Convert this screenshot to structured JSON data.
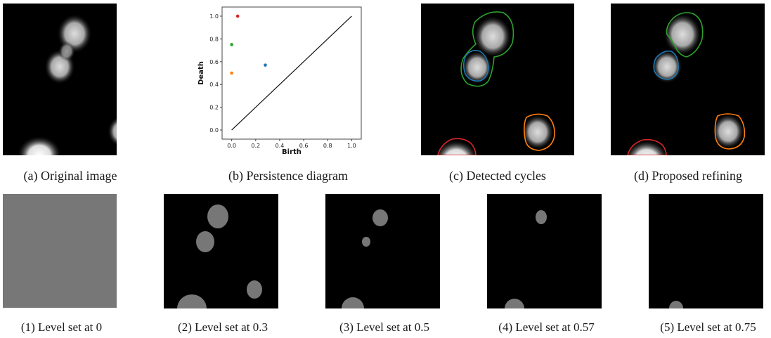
{
  "captions_top": [
    "(a) Original image",
    "(b) Persistence diagram",
    "(c) Detected cycles",
    "(d) Proposed refining"
  ],
  "captions_bottom": [
    "(1) Level set at 0",
    "(2) Level set at 0.3",
    "(3) Level set at 0.5",
    "(4) Level set at 0.57",
    "(5) Level set at 0.75"
  ],
  "colors": {
    "background": "#000000",
    "blob_fill": "#777777",
    "green": "#2ca02c",
    "orange": "#ff7f0e",
    "blue": "#1f77b4",
    "red": "#d62728"
  },
  "chart_data": {
    "type": "scatter",
    "title": "",
    "xlabel": "Birth",
    "ylabel": "Death",
    "xlim": [
      -0.08,
      1.08
    ],
    "ylim": [
      -0.08,
      1.08
    ],
    "xticks": [
      "0.0",
      "0.2",
      "0.4",
      "0.6",
      "0.8",
      "1.0"
    ],
    "yticks": [
      "0.0",
      "0.2",
      "0.4",
      "0.6",
      "0.8",
      "1.0"
    ],
    "diagonal": [
      [
        0,
        0
      ],
      [
        1,
        1
      ]
    ],
    "points": [
      {
        "x": 0.05,
        "y": 1.0,
        "color": "#d62728"
      },
      {
        "x": 0.0,
        "y": 0.75,
        "color": "#2ca02c"
      },
      {
        "x": 0.0,
        "y": 0.5,
        "color": "#ff7f0e"
      },
      {
        "x": 0.28,
        "y": 0.57,
        "color": "#1f77b4"
      }
    ]
  }
}
